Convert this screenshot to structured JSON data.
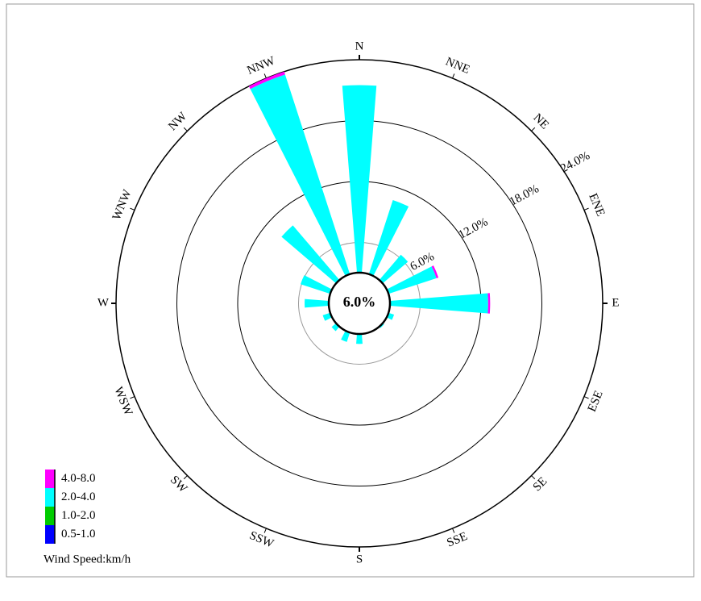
{
  "chart_data": {
    "type": "windrose",
    "categories": [
      "N",
      "NNE",
      "NE",
      "ENE",
      "E",
      "ESE",
      "SE",
      "SSE",
      "S",
      "SSW",
      "SW",
      "WSW",
      "W",
      "WNW",
      "NW",
      "NNW"
    ],
    "series": [
      {
        "name": "4.0-8.0",
        "color": "#ff00ff",
        "values": [
          0,
          0,
          0,
          0.2,
          0.2,
          0,
          0,
          0,
          0,
          0,
          0,
          0,
          0,
          0,
          0,
          0.3
        ]
      },
      {
        "name": "2.0-4.0",
        "color": "#00ffff",
        "values": [
          21.5,
          10.7,
          6.3,
          8.0,
          12.7,
          3.6,
          3.2,
          3.0,
          4.0,
          4.0,
          3.6,
          3.8,
          5.4,
          6.1,
          10.1,
          23.7
        ]
      },
      {
        "name": "1.0-2.0",
        "color": "#00cc00",
        "values": [
          0,
          0,
          0,
          0,
          0,
          0,
          0,
          0,
          0,
          0,
          0,
          0,
          0,
          0,
          0,
          0
        ]
      },
      {
        "name": "0.5-1.0",
        "color": "#0000ff",
        "values": [
          0,
          0,
          0,
          0,
          0,
          0,
          0,
          0,
          0,
          0,
          0,
          0,
          0,
          0,
          0,
          0
        ]
      }
    ],
    "rlim": [
      0,
      24
    ],
    "rticks": [
      {
        "value": 6,
        "label": "6.0%"
      },
      {
        "value": 12,
        "label": "12.0%"
      },
      {
        "value": 18,
        "label": "18.0%"
      },
      {
        "value": 24,
        "label": "24.0%"
      }
    ],
    "calm_label": "6.0%",
    "legend_title": "Wind Speed:km/h",
    "legend": "lower left"
  }
}
